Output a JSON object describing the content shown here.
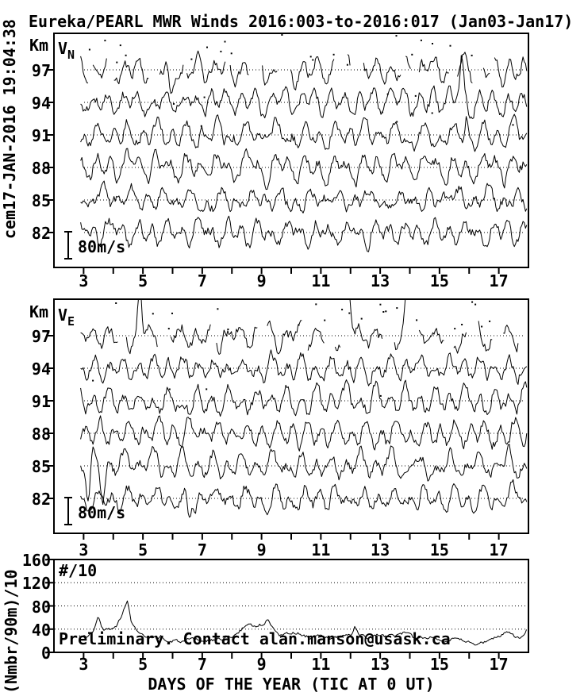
{
  "title": "Eureka/PEARL MWR Winds 2016:003-to-2016:017 (Jan03-Jan17)",
  "left_timestamp": "cem17-JAN-2016 19:04:38",
  "annotations": {
    "preliminary": "Preliminary. Contact alan.manson@usask.ca"
  },
  "x_axis": {
    "title": "DAYS OF THE YEAR (TIC AT 0 UT)",
    "range_days": [
      2,
      18
    ],
    "tick_days": [
      3,
      4,
      5,
      6,
      7,
      8,
      9,
      10,
      11,
      12,
      13,
      14,
      15,
      16,
      17
    ],
    "labeled_tick_days": [
      3,
      5,
      7,
      9,
      11,
      13,
      15,
      17
    ]
  },
  "wind_panels": {
    "y_unit_label": "Km",
    "altitudes_km": [
      97,
      94,
      91,
      88,
      85,
      82
    ],
    "scale_bar_label": "80m/s",
    "scale_bar_mps": 80
  },
  "chart_data": [
    {
      "id": "vn",
      "type": "line",
      "panel_label": {
        "main": "V",
        "sub": "N"
      },
      "description": "Northward wind time series, one trace per altitude, zero-wind dotted baseline at each altitude",
      "altitudes_km": [
        97,
        94,
        91,
        88,
        85,
        82
      ],
      "baseline_mps": 0,
      "x_range_days": [
        2,
        18
      ],
      "data_span_days": [
        2.9,
        17.95
      ],
      "scale_bar": {
        "label": "80m/s",
        "mps": 80
      },
      "synthesis": {
        "seed": 11,
        "step_days": 0.0416667,
        "semidiurnal_amp_mps": [
          14,
          30
        ],
        "diurnal_amp_mps": [
          10,
          22
        ],
        "noise_mps": 15,
        "ar": 0.6,
        "gap_alt": 97,
        "dots_seed": 5,
        "dots_n": 30,
        "events": [
          {
            "alt": 97,
            "day": 5.95,
            "amp_mps": -95
          },
          {
            "alt": 97,
            "day": 11.6,
            "amp_mps": 85
          },
          {
            "alt": 94,
            "day": 15.75,
            "amp_mps": 115
          },
          {
            "alt": 91,
            "day": 15.9,
            "amp_mps": 70
          }
        ]
      }
    },
    {
      "id": "ve",
      "type": "line",
      "panel_label": {
        "main": "V",
        "sub": "E"
      },
      "description": "Eastward wind time series, one trace per altitude, zero-wind dotted baseline at each altitude",
      "altitudes_km": [
        97,
        94,
        91,
        88,
        85,
        82
      ],
      "baseline_mps": 0,
      "x_range_days": [
        2,
        18
      ],
      "data_span_days": [
        2.9,
        17.95
      ],
      "scale_bar": {
        "label": "80m/s",
        "mps": 80
      },
      "synthesis": {
        "seed": 47,
        "step_days": 0.0416667,
        "semidiurnal_amp_mps": [
          14,
          30
        ],
        "diurnal_amp_mps": [
          10,
          22
        ],
        "noise_mps": 15,
        "ar": 0.6,
        "gap_alt": 97,
        "dots_seed": 9,
        "dots_n": 30,
        "events": [
          {
            "alt": 97,
            "day": 4.9,
            "amp_mps": 140
          },
          {
            "alt": 97,
            "day": 11.95,
            "amp_mps": 120
          },
          {
            "alt": 97,
            "day": 13.9,
            "amp_mps": 110
          },
          {
            "alt": 85,
            "day": 3.15,
            "amp_mps": -75
          },
          {
            "alt": 85,
            "day": 3.65,
            "amp_mps": -70
          },
          {
            "alt": 82,
            "day": 6.55,
            "amp_mps": -70
          }
        ]
      }
    },
    {
      "id": "counts",
      "type": "line",
      "label": "#/10",
      "ylabel": "(Nmbr/90m)/10",
      "ylim": [
        0,
        160
      ],
      "y_ticks": [
        0,
        40,
        80,
        120,
        160
      ],
      "grid_values": [
        40,
        80,
        120
      ],
      "points": [
        [
          2.85,
          28
        ],
        [
          3.0,
          30
        ],
        [
          3.1,
          26
        ],
        [
          3.2,
          33
        ],
        [
          3.35,
          40
        ],
        [
          3.5,
          61
        ],
        [
          3.6,
          45
        ],
        [
          3.7,
          36
        ],
        [
          3.8,
          42
        ],
        [
          3.95,
          38
        ],
        [
          4.1,
          45
        ],
        [
          4.25,
          62
        ],
        [
          4.4,
          78
        ],
        [
          4.48,
          87
        ],
        [
          4.6,
          55
        ],
        [
          4.75,
          40
        ],
        [
          4.9,
          32
        ],
        [
          5.1,
          25
        ],
        [
          5.3,
          22
        ],
        [
          5.6,
          28
        ],
        [
          5.85,
          17
        ],
        [
          6.1,
          20
        ],
        [
          6.4,
          18
        ],
        [
          6.7,
          22
        ],
        [
          7.0,
          19
        ],
        [
          7.3,
          21
        ],
        [
          7.6,
          24
        ],
        [
          7.9,
          26
        ],
        [
          8.2,
          32
        ],
        [
          8.45,
          46
        ],
        [
          8.6,
          50
        ],
        [
          8.8,
          44
        ],
        [
          9.0,
          48
        ],
        [
          9.2,
          55
        ],
        [
          9.4,
          44
        ],
        [
          9.6,
          32
        ],
        [
          9.8,
          30
        ],
        [
          10.1,
          35
        ],
        [
          10.35,
          30
        ],
        [
          10.6,
          26
        ],
        [
          10.9,
          28
        ],
        [
          11.2,
          24
        ],
        [
          11.5,
          26
        ],
        [
          11.8,
          28
        ],
        [
          12.05,
          30
        ],
        [
          12.15,
          45
        ],
        [
          12.3,
          28
        ],
        [
          12.6,
          26
        ],
        [
          12.9,
          30
        ],
        [
          13.2,
          27
        ],
        [
          13.5,
          30
        ],
        [
          13.8,
          34
        ],
        [
          14.1,
          26
        ],
        [
          14.4,
          24
        ],
        [
          14.7,
          27
        ],
        [
          15.0,
          24
        ],
        [
          15.25,
          18
        ],
        [
          15.5,
          22
        ],
        [
          15.8,
          20
        ],
        [
          16.1,
          16
        ],
        [
          16.35,
          14
        ],
        [
          16.6,
          20
        ],
        [
          16.9,
          26
        ],
        [
          17.1,
          30
        ],
        [
          17.35,
          38
        ],
        [
          17.55,
          28
        ],
        [
          17.7,
          24
        ],
        [
          17.85,
          34
        ],
        [
          18.0,
          42
        ]
      ],
      "noise": {
        "seed": 3,
        "amp": 2.5,
        "ar": 0.5
      }
    }
  ],
  "colors": {
    "foreground": "#000000",
    "background": "#ffffff"
  }
}
